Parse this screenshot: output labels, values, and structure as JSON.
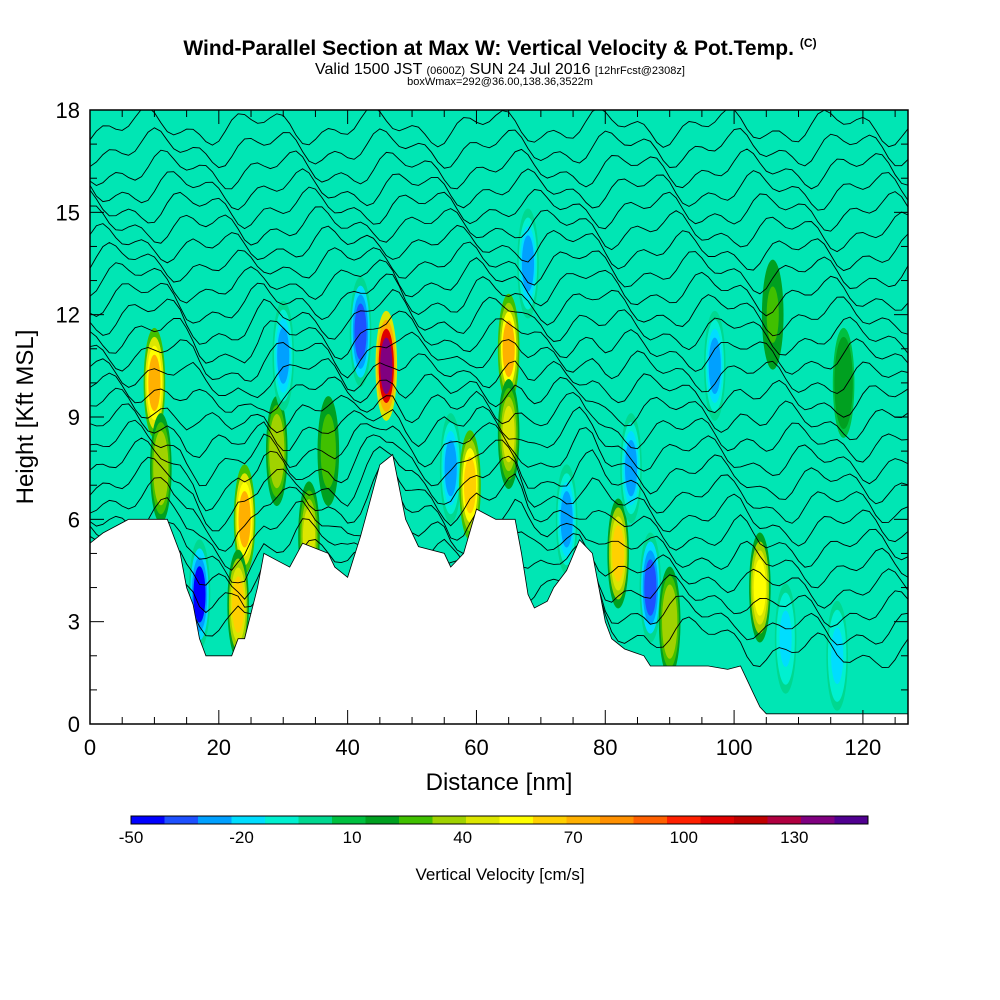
{
  "header": {
    "title": "Wind-Parallel Section at Max W: Vertical Velocity & Pot.Temp.",
    "copyright_mark": "(C)",
    "valid_prefix": "Valid 1500 JST",
    "valid_utc": "(0600Z)",
    "valid_date": "SUN 24 Jul 2016",
    "forecast_info": "[12hrFcst@2308z]",
    "box_info": "boxWmax=292@36.00,138.36,3522m"
  },
  "colors": {
    "background": "#00e6b4",
    "terrain": "#ffffff",
    "contour": "#000000",
    "bins": [
      "#0000ff",
      "#1e50ff",
      "#00a0ff",
      "#00ddff",
      "#00f0d0",
      "#00d890",
      "#00c040",
      "#00a020",
      "#40c000",
      "#a0d200",
      "#dce600",
      "#ffff00",
      "#ffd000",
      "#ffb000",
      "#ff9000",
      "#ff6000",
      "#ff2000",
      "#e00000",
      "#c00000",
      "#b00040",
      "#800080",
      "#500090"
    ]
  },
  "chart_data": {
    "type": "heatmap",
    "xlabel": "Distance [nm]",
    "ylabel": "Height [Kft MSL]",
    "xlim": [
      0,
      127
    ],
    "ylim": [
      0,
      18
    ],
    "xticks": [
      "0",
      "20",
      "40",
      "60",
      "80",
      "100",
      "120"
    ],
    "xtick_values": [
      0,
      20,
      40,
      60,
      80,
      100,
      120
    ],
    "yticks": [
      "0",
      "3",
      "6",
      "9",
      "12",
      "15",
      "18"
    ],
    "ytick_values": [
      0,
      3,
      6,
      9,
      12,
      15,
      18
    ],
    "colorbar": {
      "title": "Vertical Velocity [cm/s]",
      "range": [
        -50,
        150
      ],
      "labels": [
        "-50",
        "-20",
        "10",
        "40",
        "70",
        "100",
        "130"
      ],
      "label_values": [
        -50,
        -20,
        10,
        40,
        70,
        100,
        130
      ]
    },
    "terrain_height_kft": [
      [
        0,
        5.3
      ],
      [
        2,
        5.6
      ],
      [
        6,
        6.0
      ],
      [
        12,
        6.0
      ],
      [
        14,
        5.0
      ],
      [
        15,
        4.0
      ],
      [
        16,
        3.5
      ],
      [
        17,
        2.5
      ],
      [
        18,
        2.0
      ],
      [
        22,
        2.0
      ],
      [
        23,
        2.5
      ],
      [
        24,
        2.5
      ],
      [
        26,
        4.0
      ],
      [
        27,
        5.0
      ],
      [
        29,
        4.8
      ],
      [
        31,
        4.6
      ],
      [
        33,
        5.3
      ],
      [
        37,
        5.0
      ],
      [
        38,
        4.6
      ],
      [
        40,
        4.3
      ],
      [
        42,
        5.5
      ],
      [
        43,
        6.2
      ],
      [
        45,
        7.6
      ],
      [
        47,
        7.9
      ],
      [
        49,
        6.0
      ],
      [
        51,
        5.2
      ],
      [
        55,
        5.0
      ],
      [
        56,
        4.6
      ],
      [
        58,
        5.0
      ],
      [
        60,
        6.3
      ],
      [
        63,
        6.0
      ],
      [
        66,
        6.0
      ],
      [
        67,
        5.0
      ],
      [
        68,
        3.8
      ],
      [
        69,
        3.4
      ],
      [
        71,
        3.6
      ],
      [
        72,
        4.0
      ],
      [
        74,
        4.5
      ],
      [
        76,
        5.4
      ],
      [
        78,
        5.0
      ],
      [
        80,
        3.0
      ],
      [
        81,
        2.5
      ],
      [
        83,
        2.2
      ],
      [
        86,
        2.0
      ],
      [
        87,
        1.7
      ],
      [
        96,
        1.7
      ],
      [
        99,
        1.6
      ],
      [
        101,
        1.7
      ],
      [
        103,
        0.9
      ],
      [
        104,
        0.5
      ],
      [
        105,
        0.3
      ],
      [
        127,
        0.3
      ]
    ],
    "vertical_velocity_cells": [
      {
        "x": 10,
        "z": 10.0,
        "w": 75
      },
      {
        "x": 11,
        "z": 7.5,
        "w": 40
      },
      {
        "x": 17,
        "z": 3.8,
        "w": -45
      },
      {
        "x": 24,
        "z": 6.0,
        "w": 72
      },
      {
        "x": 23,
        "z": 3.5,
        "w": 60
      },
      {
        "x": 29,
        "z": 8.0,
        "w": 40
      },
      {
        "x": 30,
        "z": 10.8,
        "w": -25
      },
      {
        "x": 34,
        "z": 5.5,
        "w": 45
      },
      {
        "x": 37,
        "z": 8.0,
        "w": 30
      },
      {
        "x": 42,
        "z": 11.5,
        "w": -40
      },
      {
        "x": 46,
        "z": 10.5,
        "w": 140
      },
      {
        "x": 56,
        "z": 7.5,
        "w": -25
      },
      {
        "x": 59,
        "z": 7.0,
        "w": 65
      },
      {
        "x": 65,
        "z": 11.0,
        "w": 70
      },
      {
        "x": 65,
        "z": 8.5,
        "w": 50
      },
      {
        "x": 68,
        "z": 13.5,
        "w": -25
      },
      {
        "x": 74,
        "z": 6.0,
        "w": -30
      },
      {
        "x": 82,
        "z": 5.0,
        "w": 60
      },
      {
        "x": 84,
        "z": 7.5,
        "w": -30
      },
      {
        "x": 87,
        "z": 4.0,
        "w": -40
      },
      {
        "x": 90,
        "z": 3.0,
        "w": 40
      },
      {
        "x": 97,
        "z": 10.5,
        "w": -25
      },
      {
        "x": 104,
        "z": 4.0,
        "w": 55
      },
      {
        "x": 106,
        "z": 12.0,
        "w": 25
      },
      {
        "x": 108,
        "z": 2.5,
        "w": -20
      },
      {
        "x": 116,
        "z": 2.0,
        "w": -20
      },
      {
        "x": 117,
        "z": 10.0,
        "w": 20
      }
    ],
    "potential_temperature_contours": {
      "color": "#000000"
    }
  }
}
